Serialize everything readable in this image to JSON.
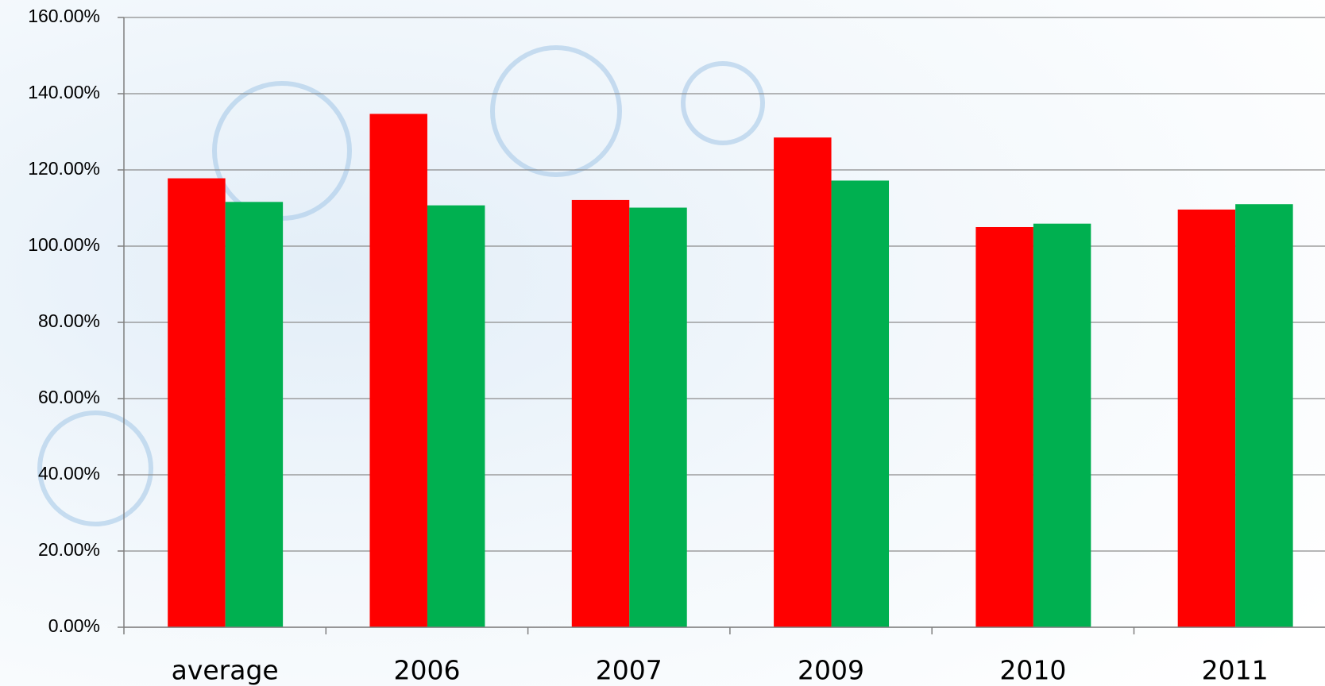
{
  "chart_data": {
    "type": "bar",
    "categories": [
      "average",
      "2006",
      "2007",
      "2009",
      "2010",
      "2011"
    ],
    "series": [
      {
        "color": "#ff0000",
        "values": [
          117.8,
          134.7,
          112.1,
          128.5,
          105.0,
          109.6
        ]
      },
      {
        "color": "#00b050",
        "values": [
          111.6,
          110.7,
          110.1,
          117.2,
          105.9,
          111.0
        ]
      }
    ],
    "ylim": [
      0,
      160
    ],
    "yticks": [
      {
        "value": 0,
        "label": "0.00%"
      },
      {
        "value": 20,
        "label": "20.00%"
      },
      {
        "value": 40,
        "label": "40.00%"
      },
      {
        "value": 60,
        "label": "60.00%"
      },
      {
        "value": 80,
        "label": "80.00%"
      },
      {
        "value": 100,
        "label": "100.00%"
      },
      {
        "value": 120,
        "label": "120.00%"
      },
      {
        "value": 140,
        "label": "140.00%"
      },
      {
        "value": 160,
        "label": "160.00%"
      }
    ],
    "grid": true
  }
}
